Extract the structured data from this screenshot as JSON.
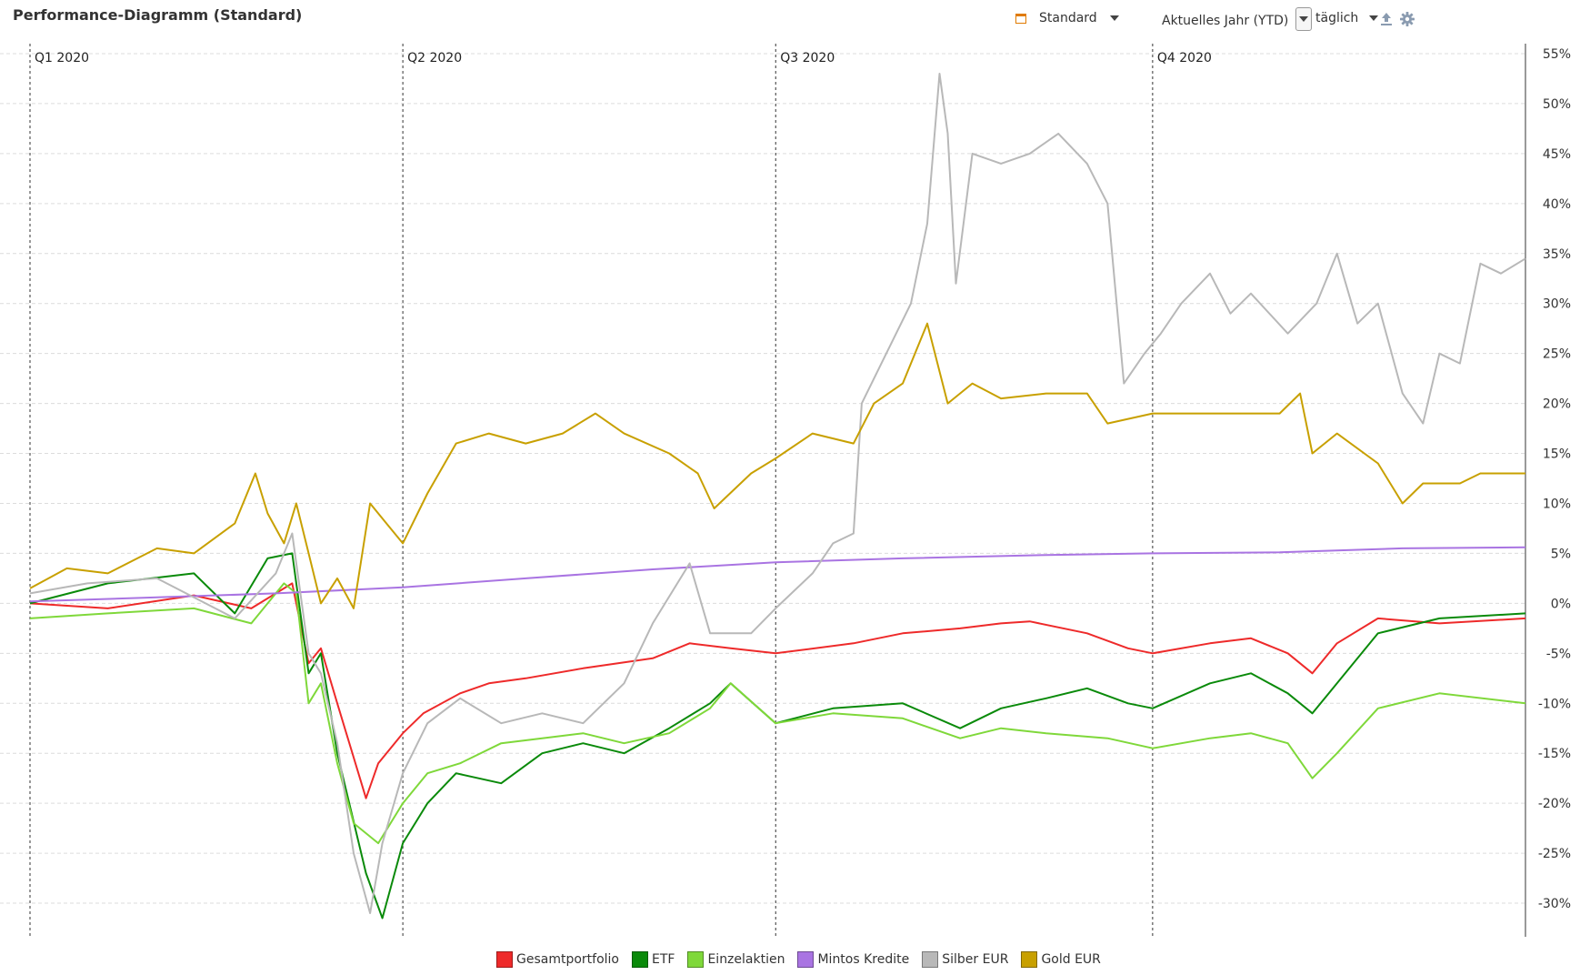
{
  "header": {
    "title": "Performance-Diagramm (Standard)",
    "preset_label": "Standard",
    "period_label": "Aktuelles Jahr (YTD)",
    "interval_label": "täglich",
    "icons": {
      "preset": "calendar-icon",
      "export": "upload-icon",
      "settings": "gear-icon"
    },
    "accent_color": "#e07b00"
  },
  "chart_data": {
    "type": "line",
    "title": "Performance-Diagramm (Standard)",
    "xlabel": "",
    "ylabel": "",
    "x_range": [
      "2020-01-01",
      "2020-12-31"
    ],
    "quarter_labels": [
      {
        "label": "Q1 2020",
        "date": "2020-01-01"
      },
      {
        "label": "Q2 2020",
        "date": "2020-04-01"
      },
      {
        "label": "Q3 2020",
        "date": "2020-07-01"
      },
      {
        "label": "Q4 2020",
        "date": "2020-10-01"
      }
    ],
    "ylim": [
      -34,
      56
    ],
    "yticks": [
      55,
      50,
      45,
      40,
      35,
      30,
      25,
      20,
      15,
      10,
      5,
      0,
      -5,
      -10,
      -15,
      -20,
      -25,
      -30
    ],
    "ytick_labels": [
      "55%",
      "50%",
      "45%",
      "40%",
      "35%",
      "30%",
      "25%",
      "20%",
      "15%",
      "10%",
      "5%",
      "0%",
      "-5%",
      "-10%",
      "-15%",
      "-20%",
      "-25%",
      "-30%"
    ],
    "y_axis_side": "right",
    "grid": true,
    "legend_position": "bottom",
    "series": [
      {
        "name": "Gesamtportfolio",
        "color": "#ee2a2a",
        "points": [
          [
            "2020-01-01",
            0
          ],
          [
            "2020-01-20",
            -0.5
          ],
          [
            "2020-02-10",
            0.8
          ],
          [
            "2020-02-24",
            -0.5
          ],
          [
            "2020-03-05",
            2
          ],
          [
            "2020-03-09",
            -6
          ],
          [
            "2020-03-12",
            -4.5
          ],
          [
            "2020-03-16",
            -10
          ],
          [
            "2020-03-23",
            -19.5
          ],
          [
            "2020-03-26",
            -16
          ],
          [
            "2020-04-01",
            -13
          ],
          [
            "2020-04-06",
            -11
          ],
          [
            "2020-04-15",
            -9
          ],
          [
            "2020-04-22",
            -8
          ],
          [
            "2020-05-01",
            -7.5
          ],
          [
            "2020-05-15",
            -6.5
          ],
          [
            "2020-06-01",
            -5.5
          ],
          [
            "2020-06-10",
            -4
          ],
          [
            "2020-06-20",
            -4.5
          ],
          [
            "2020-07-01",
            -5
          ],
          [
            "2020-07-20",
            -4
          ],
          [
            "2020-08-01",
            -3
          ],
          [
            "2020-08-15",
            -2.5
          ],
          [
            "2020-08-25",
            -2
          ],
          [
            "2020-09-01",
            -1.8
          ],
          [
            "2020-09-15",
            -3
          ],
          [
            "2020-09-25",
            -4.5
          ],
          [
            "2020-10-01",
            -5
          ],
          [
            "2020-10-15",
            -4
          ],
          [
            "2020-10-25",
            -3.5
          ],
          [
            "2020-11-03",
            -5
          ],
          [
            "2020-11-09",
            -7
          ],
          [
            "2020-11-15",
            -4
          ],
          [
            "2020-11-25",
            -1.5
          ],
          [
            "2020-12-10",
            -2
          ],
          [
            "2020-12-31",
            -1.5
          ]
        ]
      },
      {
        "name": "ETF",
        "color": "#0a8a0a",
        "points": [
          [
            "2020-01-01",
            0
          ],
          [
            "2020-01-20",
            2
          ],
          [
            "2020-02-10",
            3
          ],
          [
            "2020-02-20",
            -1
          ],
          [
            "2020-02-28",
            4.5
          ],
          [
            "2020-03-05",
            5
          ],
          [
            "2020-03-09",
            -7
          ],
          [
            "2020-03-12",
            -5
          ],
          [
            "2020-03-16",
            -15
          ],
          [
            "2020-03-23",
            -27
          ],
          [
            "2020-03-27",
            -31.5
          ],
          [
            "2020-04-01",
            -24
          ],
          [
            "2020-04-07",
            -20
          ],
          [
            "2020-04-14",
            -17
          ],
          [
            "2020-04-25",
            -18
          ],
          [
            "2020-05-05",
            -15
          ],
          [
            "2020-05-15",
            -14
          ],
          [
            "2020-05-25",
            -15
          ],
          [
            "2020-06-05",
            -12.5
          ],
          [
            "2020-06-15",
            -10
          ],
          [
            "2020-06-20",
            -8
          ],
          [
            "2020-07-01",
            -12
          ],
          [
            "2020-07-15",
            -10.5
          ],
          [
            "2020-08-01",
            -10
          ],
          [
            "2020-08-15",
            -12.5
          ],
          [
            "2020-08-25",
            -10.5
          ],
          [
            "2020-09-05",
            -9.5
          ],
          [
            "2020-09-15",
            -8.5
          ],
          [
            "2020-09-25",
            -10
          ],
          [
            "2020-10-01",
            -10.5
          ],
          [
            "2020-10-15",
            -8
          ],
          [
            "2020-10-25",
            -7
          ],
          [
            "2020-11-03",
            -9
          ],
          [
            "2020-11-09",
            -11
          ],
          [
            "2020-11-15",
            -8
          ],
          [
            "2020-11-25",
            -3
          ],
          [
            "2020-12-10",
            -1.5
          ],
          [
            "2020-12-31",
            -1
          ]
        ]
      },
      {
        "name": "Einzelaktien",
        "color": "#7fd83a",
        "points": [
          [
            "2020-01-01",
            -1.5
          ],
          [
            "2020-01-20",
            -1
          ],
          [
            "2020-02-10",
            -0.5
          ],
          [
            "2020-02-24",
            -2
          ],
          [
            "2020-03-03",
            2
          ],
          [
            "2020-03-06",
            1
          ],
          [
            "2020-03-09",
            -10
          ],
          [
            "2020-03-12",
            -8
          ],
          [
            "2020-03-16",
            -16
          ],
          [
            "2020-03-20",
            -22
          ],
          [
            "2020-03-26",
            -24
          ],
          [
            "2020-04-01",
            -20
          ],
          [
            "2020-04-07",
            -17
          ],
          [
            "2020-04-15",
            -16
          ],
          [
            "2020-04-25",
            -14
          ],
          [
            "2020-05-05",
            -13.5
          ],
          [
            "2020-05-15",
            -13
          ],
          [
            "2020-05-25",
            -14
          ],
          [
            "2020-06-05",
            -13
          ],
          [
            "2020-06-15",
            -10.5
          ],
          [
            "2020-06-20",
            -8
          ],
          [
            "2020-07-01",
            -12
          ],
          [
            "2020-07-15",
            -11
          ],
          [
            "2020-08-01",
            -11.5
          ],
          [
            "2020-08-15",
            -13.5
          ],
          [
            "2020-08-25",
            -12.5
          ],
          [
            "2020-09-05",
            -13
          ],
          [
            "2020-09-20",
            -13.5
          ],
          [
            "2020-10-01",
            -14.5
          ],
          [
            "2020-10-15",
            -13.5
          ],
          [
            "2020-10-25",
            -13
          ],
          [
            "2020-11-03",
            -14
          ],
          [
            "2020-11-09",
            -17.5
          ],
          [
            "2020-11-15",
            -15
          ],
          [
            "2020-11-25",
            -10.5
          ],
          [
            "2020-12-10",
            -9
          ],
          [
            "2020-12-31",
            -10
          ]
        ]
      },
      {
        "name": "Mintos Kredite",
        "color": "#a974e2",
        "points": [
          [
            "2020-01-01",
            0.2
          ],
          [
            "2020-02-01",
            0.6
          ],
          [
            "2020-03-01",
            1.0
          ],
          [
            "2020-04-01",
            1.6
          ],
          [
            "2020-05-01",
            2.5
          ],
          [
            "2020-06-01",
            3.4
          ],
          [
            "2020-07-01",
            4.1
          ],
          [
            "2020-08-01",
            4.5
          ],
          [
            "2020-09-01",
            4.8
          ],
          [
            "2020-10-01",
            5.0
          ],
          [
            "2020-11-01",
            5.1
          ],
          [
            "2020-12-01",
            5.5
          ],
          [
            "2020-12-31",
            5.6
          ]
        ]
      },
      {
        "name": "Silber EUR",
        "color": "#b8b8b8",
        "points": [
          [
            "2020-01-01",
            1
          ],
          [
            "2020-01-15",
            2
          ],
          [
            "2020-02-01",
            2.5
          ],
          [
            "2020-02-20",
            -1.5
          ],
          [
            "2020-03-01",
            3
          ],
          [
            "2020-03-05",
            7
          ],
          [
            "2020-03-09",
            -5
          ],
          [
            "2020-03-12",
            -7
          ],
          [
            "2020-03-16",
            -14
          ],
          [
            "2020-03-20",
            -25
          ],
          [
            "2020-03-24",
            -31
          ],
          [
            "2020-03-27",
            -24
          ],
          [
            "2020-04-01",
            -17
          ],
          [
            "2020-04-07",
            -12
          ],
          [
            "2020-04-15",
            -9.5
          ],
          [
            "2020-04-25",
            -12
          ],
          [
            "2020-05-05",
            -11
          ],
          [
            "2020-05-15",
            -12
          ],
          [
            "2020-05-25",
            -8
          ],
          [
            "2020-06-01",
            -2
          ],
          [
            "2020-06-10",
            4
          ],
          [
            "2020-06-15",
            -3
          ],
          [
            "2020-06-25",
            -3
          ],
          [
            "2020-07-01",
            -0.5
          ],
          [
            "2020-07-10",
            3
          ],
          [
            "2020-07-15",
            6
          ],
          [
            "2020-07-20",
            7
          ],
          [
            "2020-07-22",
            20
          ],
          [
            "2020-07-28",
            25
          ],
          [
            "2020-08-03",
            30
          ],
          [
            "2020-08-07",
            38
          ],
          [
            "2020-08-10",
            53
          ],
          [
            "2020-08-12",
            47
          ],
          [
            "2020-08-14",
            32
          ],
          [
            "2020-08-18",
            45
          ],
          [
            "2020-08-25",
            44
          ],
          [
            "2020-09-01",
            45
          ],
          [
            "2020-09-08",
            47
          ],
          [
            "2020-09-15",
            44
          ],
          [
            "2020-09-20",
            40
          ],
          [
            "2020-09-24",
            22
          ],
          [
            "2020-09-29",
            25
          ],
          [
            "2020-10-03",
            27
          ],
          [
            "2020-10-08",
            30
          ],
          [
            "2020-10-15",
            33
          ],
          [
            "2020-10-20",
            29
          ],
          [
            "2020-10-25",
            31
          ],
          [
            "2020-11-03",
            27
          ],
          [
            "2020-11-10",
            30
          ],
          [
            "2020-11-15",
            35
          ],
          [
            "2020-11-20",
            28
          ],
          [
            "2020-11-25",
            30
          ],
          [
            "2020-12-01",
            21
          ],
          [
            "2020-12-06",
            18
          ],
          [
            "2020-12-10",
            25
          ],
          [
            "2020-12-15",
            24
          ],
          [
            "2020-12-20",
            34
          ],
          [
            "2020-12-25",
            33
          ],
          [
            "2020-12-31",
            34.5
          ]
        ]
      },
      {
        "name": "Gold EUR",
        "color": "#c8a000",
        "points": [
          [
            "2020-01-01",
            1.5
          ],
          [
            "2020-01-10",
            3.5
          ],
          [
            "2020-01-20",
            3
          ],
          [
            "2020-02-01",
            5.5
          ],
          [
            "2020-02-10",
            5
          ],
          [
            "2020-02-20",
            8
          ],
          [
            "2020-02-25",
            13
          ],
          [
            "2020-02-28",
            9
          ],
          [
            "2020-03-03",
            6
          ],
          [
            "2020-03-06",
            10
          ],
          [
            "2020-03-09",
            5
          ],
          [
            "2020-03-12",
            0
          ],
          [
            "2020-03-16",
            2.5
          ],
          [
            "2020-03-20",
            -0.5
          ],
          [
            "2020-03-24",
            10
          ],
          [
            "2020-03-28",
            8
          ],
          [
            "2020-04-01",
            6
          ],
          [
            "2020-04-07",
            11
          ],
          [
            "2020-04-14",
            16
          ],
          [
            "2020-04-22",
            17
          ],
          [
            "2020-05-01",
            16
          ],
          [
            "2020-05-10",
            17
          ],
          [
            "2020-05-18",
            19
          ],
          [
            "2020-05-25",
            17
          ],
          [
            "2020-06-05",
            15
          ],
          [
            "2020-06-12",
            13
          ],
          [
            "2020-06-16",
            9.5
          ],
          [
            "2020-06-25",
            13
          ],
          [
            "2020-07-01",
            14.5
          ],
          [
            "2020-07-10",
            17
          ],
          [
            "2020-07-20",
            16
          ],
          [
            "2020-07-25",
            20
          ],
          [
            "2020-08-01",
            22
          ],
          [
            "2020-08-07",
            28
          ],
          [
            "2020-08-12",
            20
          ],
          [
            "2020-08-18",
            22
          ],
          [
            "2020-08-25",
            20.5
          ],
          [
            "2020-09-05",
            21
          ],
          [
            "2020-09-15",
            21
          ],
          [
            "2020-09-20",
            18
          ],
          [
            "2020-10-01",
            19
          ],
          [
            "2020-10-10",
            19
          ],
          [
            "2020-10-20",
            19
          ],
          [
            "2020-11-01",
            19
          ],
          [
            "2020-11-06",
            21
          ],
          [
            "2020-11-09",
            15
          ],
          [
            "2020-11-15",
            17
          ],
          [
            "2020-11-25",
            14
          ],
          [
            "2020-12-01",
            10
          ],
          [
            "2020-12-06",
            12
          ],
          [
            "2020-12-15",
            12
          ],
          [
            "2020-12-20",
            13
          ],
          [
            "2020-12-31",
            13
          ]
        ]
      }
    ]
  }
}
